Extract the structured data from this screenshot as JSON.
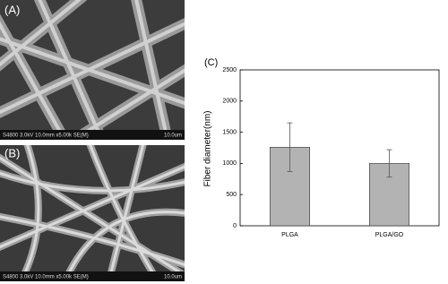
{
  "panels": {
    "a": {
      "label": "(A)",
      "caption": "S4800 3.0kV 10.0mm x5.00k SE(M)",
      "scale": "10.0um"
    },
    "b": {
      "label": "(B)",
      "caption": "S4800 3.0kV 10.0mm x5.00k SE(M)",
      "scale": "10.0um"
    }
  },
  "chart_data": {
    "type": "bar",
    "label": "(C)",
    "y_label": "Fiber diameter(nm)",
    "categories": [
      "PLGA",
      "PLGA/GO"
    ],
    "values": [
      1260,
      1000
    ],
    "errors": [
      390,
      220
    ],
    "color": "#b3b3b3",
    "ylim": [
      0,
      2500
    ],
    "yticks": [
      0,
      500,
      1000,
      1500,
      2000,
      2500
    ]
  }
}
